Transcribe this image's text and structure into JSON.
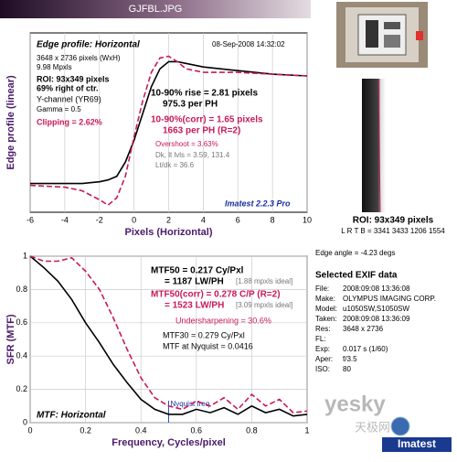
{
  "header": {
    "title": "GJFBL.JPG"
  },
  "chart_data": [
    {
      "type": "line",
      "x": [
        -6,
        -4,
        -3,
        -2,
        -1.5,
        -1,
        -0.5,
        0,
        0.5,
        1,
        1.5,
        2,
        2.5,
        3,
        4,
        6,
        8,
        10
      ],
      "series": [
        {
          "color": "#000000",
          "style": "solid",
          "values": [
            0.16,
            0.16,
            0.16,
            0.17,
            0.18,
            0.2,
            0.28,
            0.4,
            0.55,
            0.7,
            0.8,
            0.84,
            0.84,
            0.83,
            0.81,
            0.79,
            0.77,
            0.76
          ]
        },
        {
          "color": "#c8195a",
          "style": "dashed",
          "values": [
            0.15,
            0.14,
            0.12,
            0.07,
            0.04,
            0.08,
            0.2,
            0.42,
            0.62,
            0.78,
            0.86,
            0.87,
            0.84,
            0.8,
            0.78,
            0.78,
            0.77,
            0.76
          ]
        }
      ],
      "xlim": [
        -6,
        10
      ],
      "xticks": [
        -6,
        -4,
        -2,
        0,
        2,
        4,
        6,
        8,
        10
      ],
      "ylim": [
        0,
        1
      ],
      "grid": true,
      "xlabel": "Pixels (Horizontal)",
      "ylabel": "Edge profile (linear)",
      "annotations": [
        "Edge profile: Horizontal",
        "08-Sep-2008 14:32:02",
        "3648 x 2736 pixels (WxH)",
        "9.98 Mpxls",
        "ROI: 93x349 pixels",
        "69% right of ctr.",
        "Y-channel (YR69)",
        "Gamma = 0.5",
        "Clipping =  2.62%",
        "10-90% rise = 2.81 pixels",
        "975.3 per PH",
        "10-90%(corr) = 1.65 pixels",
        "1663 per PH  (R=2)",
        "Overshoot = 3.63%",
        "Dk, lt lvls = 3.59, 131.4",
        "Lt/dk = 36.6",
        "Imatest 2.2.3 Pro"
      ]
    },
    {
      "type": "line",
      "x": [
        0,
        0.05,
        0.1,
        0.15,
        0.2,
        0.25,
        0.3,
        0.35,
        0.4,
        0.45,
        0.5,
        0.55,
        0.6,
        0.65,
        0.7,
        0.75,
        0.8,
        0.85,
        0.9,
        0.95,
        1
      ],
      "series": [
        {
          "color": "#000000",
          "style": "solid",
          "values": [
            1,
            0.93,
            0.85,
            0.74,
            0.6,
            0.48,
            0.35,
            0.24,
            0.14,
            0.08,
            0.05,
            0.05,
            0.08,
            0.06,
            0.09,
            0.05,
            0.1,
            0.06,
            0.08,
            0.04,
            0.05
          ]
        },
        {
          "color": "#c8195a",
          "style": "dashed",
          "values": [
            1,
            0.97,
            0.97,
            0.99,
            0.91,
            0.8,
            0.63,
            0.44,
            0.27,
            0.15,
            0.1,
            0.08,
            0.13,
            0.1,
            0.15,
            0.08,
            0.17,
            0.1,
            0.14,
            0.06,
            0.07
          ]
        }
      ],
      "xlim": [
        0,
        1
      ],
      "xticks": [
        0,
        0.2,
        0.4,
        0.6,
        0.8,
        1
      ],
      "ylim": [
        0,
        1
      ],
      "yticks": [
        0,
        0.2,
        0.4,
        0.6,
        0.8,
        1
      ],
      "grid": true,
      "markers": [
        {
          "x": 0.5,
          "label": "Nyquist freq."
        }
      ],
      "xlabel": "Frequency, Cycles/pixel",
      "ylabel": "SFR (MTF)",
      "annotations": [
        "MTF50 = 0.217 Cy/Pxl",
        "= 1187 LW/PH",
        "[1.88 mpxls ideal]",
        "MTF50(corr) = 0.278 C/P (R=2)",
        "= 1523 LW/PH",
        "[3.09 mpxls ideal]",
        "Undersharpening = 30.6%",
        "MTF30 = 0.279 Cy/Pxl",
        "MTF at Nyquist = 0.0416",
        "MTF: Horizontal"
      ]
    }
  ],
  "panel": {
    "roi": "ROI: 93x349 pixels",
    "lrtb": "L R T B = 3341 3433 1206 1554",
    "edge_angle": "Edge angle = -4.23 degs",
    "exif_title": "Selected EXIF data",
    "exif": [
      [
        "File:",
        "2008:09:08 13:36:08"
      ],
      [
        "Make:",
        "OLYMPUS IMAGING CORP."
      ],
      [
        "Model:",
        "u1050SW,S1050SW"
      ],
      [
        "Taken:",
        "2008:09:08 13:36:09"
      ],
      [
        "Res:",
        "3648 x 2736"
      ],
      [
        "FL:"
      ],
      [
        "Exp:",
        "0.017 s  (1/60)"
      ],
      [
        "Aper:",
        "f/3.5"
      ],
      [
        "ISO:",
        "80"
      ]
    ]
  },
  "watermark": {
    "site": "yesky",
    "cn": "天极网",
    "logo": "Imatest"
  }
}
